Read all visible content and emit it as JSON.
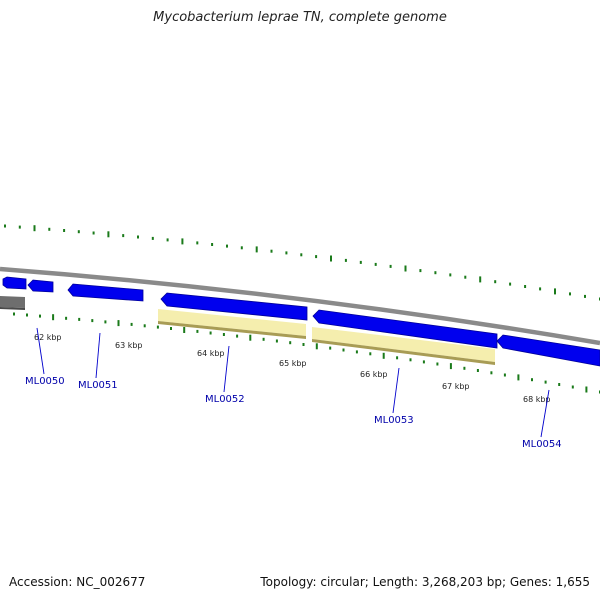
{
  "title": "Mycobacterium leprae TN, complete genome",
  "footer": {
    "accession": "Accession: NC_002677",
    "summary": "Topology: circular; Length: 3,268,203 bp; Genes: 1,655"
  },
  "colors": {
    "backbone": "#8a8a8a",
    "gene_forward": "#0000ee",
    "gene_reverse_pseudo": "#f5eeae",
    "gene_grey": "#6e6e6e",
    "tick_green": "#1a7a1a",
    "label_blue": "#0000aa",
    "leader_blue": "#0000cc"
  },
  "ruler": {
    "ticks": [
      "62 kbp",
      "63 kbp",
      "64 kbp",
      "65 kbp",
      "66 kbp",
      "67 kbp",
      "68 kbp"
    ]
  },
  "genes": [
    {
      "label": "ML0050"
    },
    {
      "label": "ML0051"
    },
    {
      "label": "ML0052"
    },
    {
      "label": "ML0053"
    },
    {
      "label": "ML0054"
    }
  ]
}
